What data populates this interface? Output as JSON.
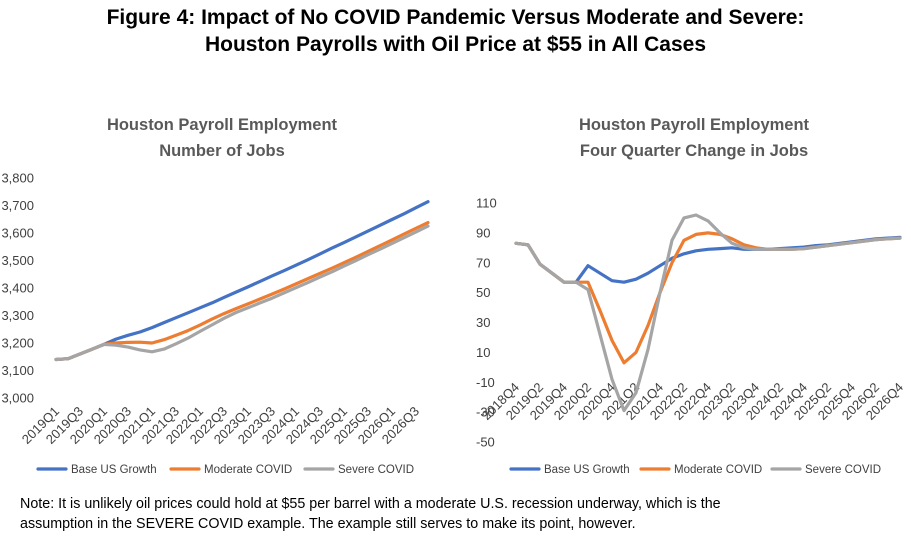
{
  "figure": {
    "title_line1": "Figure 4: Impact of No COVID Pandemic Versus Moderate and Severe:",
    "title_line2": "Houston Payrolls with Oil Price at $55 in All Cases"
  },
  "note": {
    "line1": "Note: It is unlikely oil prices could hold at $55 per barrel with a moderate U.S. recession underway, which  is the",
    "line2": "assumption in the SEVERE COVID example.  The example still serves to make its point, however."
  },
  "colors": {
    "base": "#4472C4",
    "moderate": "#ED7D31",
    "severe": "#A5A5A5"
  },
  "chart_data": [
    {
      "type": "line",
      "title": "Houston Payroll Employment",
      "subtitle": "Number of Jobs",
      "ylim": [
        3000,
        3800
      ],
      "ytick_labels": [
        "3,000",
        "3,100",
        "3,200",
        "3,300",
        "3,400",
        "3,500",
        "3,600",
        "3,700",
        "3,800"
      ],
      "xtick_labels": [
        "2019Q1",
        "2019Q3",
        "2020Q1",
        "2020Q3",
        "2021Q1",
        "2021Q3",
        "2022Q1",
        "2022Q3",
        "2023Q1",
        "2023Q3",
        "2024Q1",
        "2024Q3",
        "2025Q1",
        "2025Q3",
        "2026Q1",
        "2026Q3"
      ],
      "x": [
        "2019Q1",
        "2019Q2",
        "2019Q3",
        "2019Q4",
        "2020Q1",
        "2020Q2",
        "2020Q3",
        "2020Q4",
        "2021Q1",
        "2021Q2",
        "2021Q3",
        "2021Q4",
        "2022Q1",
        "2022Q2",
        "2022Q3",
        "2022Q4",
        "2023Q1",
        "2023Q2",
        "2023Q3",
        "2023Q4",
        "2024Q1",
        "2024Q2",
        "2024Q3",
        "2024Q4",
        "2025Q1",
        "2025Q2",
        "2025Q3",
        "2025Q4",
        "2026Q1",
        "2026Q2",
        "2026Q3",
        "2026Q4"
      ],
      "grid": false,
      "legend": "bottom",
      "series": [
        {
          "name": "Base US Growth",
          "values": [
            3140,
            3143,
            3160,
            3177,
            3195,
            3214,
            3228,
            3240,
            3256,
            3274,
            3292,
            3310,
            3328,
            3346,
            3366,
            3385,
            3404,
            3424,
            3444,
            3463,
            3483,
            3503,
            3524,
            3545,
            3565,
            3586,
            3607,
            3628,
            3649,
            3670,
            3692,
            3714
          ]
        },
        {
          "name": "Moderate COVID",
          "values": [
            3140,
            3143,
            3160,
            3177,
            3195,
            3200,
            3202,
            3203,
            3200,
            3212,
            3228,
            3245,
            3265,
            3287,
            3307,
            3325,
            3342,
            3360,
            3378,
            3396,
            3415,
            3434,
            3453,
            3472,
            3492,
            3512,
            3533,
            3554,
            3575,
            3596,
            3617,
            3638
          ]
        },
        {
          "name": "Severe COVID",
          "values": [
            3140,
            3143,
            3160,
            3177,
            3195,
            3192,
            3185,
            3175,
            3168,
            3178,
            3197,
            3218,
            3242,
            3266,
            3290,
            3311,
            3328,
            3346,
            3363,
            3382,
            3401,
            3420,
            3440,
            3459,
            3480,
            3500,
            3521,
            3541,
            3562,
            3583,
            3604,
            3625
          ]
        }
      ]
    },
    {
      "type": "line",
      "title": "Houston Payroll Employment",
      "subtitle": "Four Quarter Change in Jobs",
      "ylim": [
        -50,
        110
      ],
      "ytick_labels": [
        "-50",
        "-30",
        "-10",
        "10",
        "30",
        "50",
        "70",
        "90",
        "110"
      ],
      "xtick_labels": [
        "2018Q4",
        "2019Q2",
        "2019Q4",
        "2020Q2",
        "2020Q4",
        "2021Q2",
        "2021Q4",
        "2022Q2",
        "2022Q4",
        "2023Q2",
        "2023Q4",
        "2024Q2",
        "2024Q4",
        "2025Q2",
        "2025Q4",
        "2026Q2",
        "2026Q4"
      ],
      "x": [
        "2018Q4",
        "2019Q1",
        "2019Q2",
        "2019Q3",
        "2019Q4",
        "2020Q1",
        "2020Q2",
        "2020Q3",
        "2020Q4",
        "2021Q1",
        "2021Q2",
        "2021Q3",
        "2021Q4",
        "2022Q1",
        "2022Q2",
        "2022Q3",
        "2022Q4",
        "2023Q1",
        "2023Q2",
        "2023Q3",
        "2023Q4",
        "2024Q1",
        "2024Q2",
        "2024Q3",
        "2024Q4",
        "2025Q1",
        "2025Q2",
        "2025Q3",
        "2025Q4",
        "2026Q1",
        "2026Q2",
        "2026Q3",
        "2026Q4"
      ],
      "grid": false,
      "legend": "bottom",
      "series": [
        {
          "name": "Base US Growth",
          "values": [
            83,
            82,
            69,
            63,
            57,
            57,
            68,
            63,
            58,
            57,
            59,
            63,
            68,
            73,
            76,
            78,
            79,
            79.5,
            80,
            79,
            79,
            79,
            79.5,
            80,
            80.5,
            81.5,
            82,
            83,
            84,
            85,
            86,
            86.5,
            87
          ]
        },
        {
          "name": "Moderate COVID",
          "values": [
            83,
            82,
            69,
            63,
            57,
            57,
            57,
            38,
            18,
            3,
            10,
            28,
            50,
            70,
            85,
            89,
            90,
            89,
            86,
            82,
            80,
            79,
            79,
            79,
            79.5,
            80.5,
            81.5,
            82.5,
            83.5,
            84.5,
            85.5,
            86,
            86.5
          ]
        },
        {
          "name": "Severe COVID",
          "values": [
            83,
            82,
            69,
            63,
            57,
            57,
            52,
            22,
            -8,
            -29,
            -17,
            12,
            50,
            85,
            100,
            102,
            98,
            90,
            83,
            80,
            79,
            79,
            79,
            79,
            79.5,
            80.5,
            81.5,
            82.5,
            83.5,
            84.5,
            85.5,
            86,
            86.5
          ]
        }
      ]
    }
  ]
}
